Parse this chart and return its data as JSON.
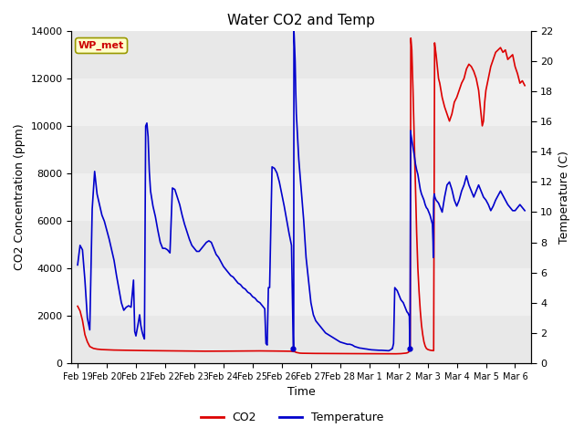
{
  "title": "Water CO2 and Temp",
  "xlabel": "Time",
  "ylabel_left": "CO2 Concentration (ppm)",
  "ylabel_right": "Temperature (C)",
  "legend_label": "WP_met",
  "legend_entries": [
    "CO2",
    "Temperature"
  ],
  "co2_color": "#dd0000",
  "temp_color": "#0000cc",
  "ylim_left": [
    0,
    14000
  ],
  "ylim_right": [
    0,
    22
  ],
  "yticks_left": [
    0,
    2000,
    4000,
    6000,
    8000,
    10000,
    12000,
    14000
  ],
  "yticks_right": [
    0,
    2,
    4,
    6,
    8,
    10,
    12,
    14,
    16,
    18,
    20,
    22
  ],
  "background_color": "#ffffff",
  "band_colors": [
    "#e8e8e8",
    "#f0f0f0"
  ],
  "annotation_box_color": "#ffffcc",
  "annotation_box_edgecolor": "#999900",
  "annotation_text_color": "#cc0000",
  "co2_data": [
    [
      0.0,
      2400
    ],
    [
      0.2,
      2200
    ],
    [
      0.4,
      1800
    ],
    [
      0.6,
      1200
    ],
    [
      0.8,
      900
    ],
    [
      1.0,
      700
    ],
    [
      1.3,
      620
    ],
    [
      1.6,
      590
    ],
    [
      2.0,
      570
    ],
    [
      2.5,
      560
    ],
    [
      3.0,
      550
    ],
    [
      3.5,
      545
    ],
    [
      4.0,
      540
    ],
    [
      4.5,
      535
    ],
    [
      5.0,
      530
    ],
    [
      5.5,
      528
    ],
    [
      6.0,
      525
    ],
    [
      6.5,
      522
    ],
    [
      7.0,
      518
    ],
    [
      7.5,
      515
    ],
    [
      8.0,
      512
    ],
    [
      8.5,
      510
    ],
    [
      9.0,
      508
    ],
    [
      9.5,
      505
    ],
    [
      10.0,
      503
    ],
    [
      10.5,
      502
    ],
    [
      11.0,
      502
    ],
    [
      11.5,
      503
    ],
    [
      12.0,
      504
    ],
    [
      12.5,
      506
    ],
    [
      13.0,
      508
    ],
    [
      13.5,
      510
    ],
    [
      14.0,
      512
    ],
    [
      14.5,
      514
    ],
    [
      15.0,
      515
    ],
    [
      15.5,
      513
    ],
    [
      16.0,
      510
    ],
    [
      16.5,
      507
    ],
    [
      17.0,
      504
    ],
    [
      17.5,
      500
    ],
    [
      17.9,
      480
    ],
    [
      17.95,
      460
    ],
    [
      18.0,
      450
    ],
    [
      18.1,
      440
    ],
    [
      18.2,
      430
    ],
    [
      18.3,
      420
    ],
    [
      18.5,
      415
    ],
    [
      19.0,
      410
    ],
    [
      19.5,
      408
    ],
    [
      20.0,
      406
    ],
    [
      20.5,
      404
    ],
    [
      21.0,
      403
    ],
    [
      21.5,
      402
    ],
    [
      22.0,
      401
    ],
    [
      22.5,
      400
    ],
    [
      23.0,
      400
    ],
    [
      23.5,
      400
    ],
    [
      24.0,
      398
    ],
    [
      24.5,
      396
    ],
    [
      25.0,
      394
    ],
    [
      25.5,
      393
    ],
    [
      26.0,
      392
    ],
    [
      26.2,
      393
    ],
    [
      26.4,
      395
    ],
    [
      26.6,
      400
    ],
    [
      26.8,
      410
    ],
    [
      27.0,
      420
    ],
    [
      27.1,
      430
    ],
    [
      27.2,
      450
    ],
    [
      27.3,
      500
    ],
    [
      27.35,
      550
    ],
    [
      27.37,
      600
    ],
    [
      27.4,
      9800
    ],
    [
      27.42,
      13700
    ],
    [
      27.5,
      13200
    ],
    [
      27.6,
      11500
    ],
    [
      27.7,
      9500
    ],
    [
      27.8,
      7500
    ],
    [
      27.9,
      5500
    ],
    [
      28.0,
      4000
    ],
    [
      28.1,
      3000
    ],
    [
      28.2,
      2200
    ],
    [
      28.3,
      1600
    ],
    [
      28.4,
      1200
    ],
    [
      28.5,
      900
    ],
    [
      28.6,
      720
    ],
    [
      28.7,
      620
    ],
    [
      28.8,
      580
    ],
    [
      28.9,
      560
    ],
    [
      29.0,
      545
    ],
    [
      29.05,
      540
    ],
    [
      29.1,
      535
    ],
    [
      29.2,
      530
    ],
    [
      29.3,
      525
    ],
    [
      29.35,
      9500
    ],
    [
      29.38,
      13500
    ],
    [
      29.4,
      13400
    ],
    [
      29.5,
      13000
    ],
    [
      29.6,
      12500
    ],
    [
      29.7,
      12000
    ],
    [
      29.8,
      11800
    ],
    [
      29.9,
      11500
    ],
    [
      30.0,
      11200
    ],
    [
      30.2,
      10800
    ],
    [
      30.4,
      10500
    ],
    [
      30.6,
      10200
    ],
    [
      30.8,
      10500
    ],
    [
      31.0,
      11000
    ],
    [
      31.2,
      11200
    ],
    [
      31.4,
      11500
    ],
    [
      31.6,
      11800
    ],
    [
      31.8,
      12000
    ],
    [
      32.0,
      12400
    ],
    [
      32.2,
      12600
    ],
    [
      32.4,
      12500
    ],
    [
      32.6,
      12300
    ],
    [
      32.8,
      12000
    ],
    [
      33.0,
      11500
    ],
    [
      33.2,
      10500
    ],
    [
      33.3,
      10000
    ],
    [
      33.4,
      10200
    ],
    [
      33.5,
      11000
    ],
    [
      33.6,
      11500
    ],
    [
      33.8,
      12000
    ],
    [
      34.0,
      12500
    ],
    [
      34.2,
      12800
    ],
    [
      34.4,
      13100
    ],
    [
      34.6,
      13200
    ],
    [
      34.8,
      13300
    ],
    [
      35.0,
      13100
    ],
    [
      35.2,
      13200
    ],
    [
      35.4,
      12800
    ],
    [
      35.6,
      12900
    ],
    [
      35.8,
      13000
    ],
    [
      36.0,
      12500
    ],
    [
      36.2,
      12200
    ],
    [
      36.4,
      11800
    ],
    [
      36.6,
      11900
    ],
    [
      36.8,
      11700
    ]
  ],
  "temp_data": [
    [
      0.0,
      6.5
    ],
    [
      0.2,
      7.8
    ],
    [
      0.4,
      7.5
    ],
    [
      0.6,
      5.5
    ],
    [
      0.8,
      3.0
    ],
    [
      1.0,
      2.2
    ],
    [
      1.2,
      10.2
    ],
    [
      1.4,
      12.7
    ],
    [
      1.6,
      11.2
    ],
    [
      1.8,
      10.5
    ],
    [
      2.0,
      9.8
    ],
    [
      2.2,
      9.4
    ],
    [
      2.4,
      8.8
    ],
    [
      2.6,
      8.2
    ],
    [
      2.8,
      7.5
    ],
    [
      3.0,
      6.8
    ],
    [
      3.2,
      5.8
    ],
    [
      3.4,
      4.9
    ],
    [
      3.6,
      4.0
    ],
    [
      3.8,
      3.5
    ],
    [
      4.0,
      3.7
    ],
    [
      4.2,
      3.8
    ],
    [
      4.4,
      3.7
    ],
    [
      4.6,
      5.5
    ],
    [
      4.7,
      2.1
    ],
    [
      4.8,
      1.8
    ],
    [
      5.0,
      2.7
    ],
    [
      5.1,
      3.2
    ],
    [
      5.2,
      2.5
    ],
    [
      5.3,
      2.1
    ],
    [
      5.4,
      1.8
    ],
    [
      5.5,
      1.6
    ],
    [
      5.6,
      15.7
    ],
    [
      5.7,
      15.9
    ],
    [
      5.8,
      15.0
    ],
    [
      5.9,
      12.7
    ],
    [
      6.0,
      11.4
    ],
    [
      6.2,
      10.4
    ],
    [
      6.4,
      9.7
    ],
    [
      6.6,
      8.8
    ],
    [
      6.8,
      8.0
    ],
    [
      7.0,
      7.6
    ],
    [
      7.2,
      7.6
    ],
    [
      7.4,
      7.5
    ],
    [
      7.5,
      7.4
    ],
    [
      7.6,
      7.3
    ],
    [
      7.8,
      11.6
    ],
    [
      8.0,
      11.5
    ],
    [
      8.2,
      11.0
    ],
    [
      8.4,
      10.5
    ],
    [
      8.6,
      9.8
    ],
    [
      8.8,
      9.2
    ],
    [
      9.0,
      8.7
    ],
    [
      9.2,
      8.2
    ],
    [
      9.4,
      7.8
    ],
    [
      9.6,
      7.6
    ],
    [
      9.8,
      7.4
    ],
    [
      10.0,
      7.4
    ],
    [
      10.2,
      7.6
    ],
    [
      10.4,
      7.8
    ],
    [
      10.6,
      8.0
    ],
    [
      10.8,
      8.1
    ],
    [
      11.0,
      8.0
    ],
    [
      11.2,
      7.6
    ],
    [
      11.4,
      7.2
    ],
    [
      11.6,
      7.0
    ],
    [
      11.8,
      6.7
    ],
    [
      12.0,
      6.4
    ],
    [
      12.2,
      6.2
    ],
    [
      12.4,
      6.0
    ],
    [
      12.6,
      5.8
    ],
    [
      12.8,
      5.7
    ],
    [
      13.0,
      5.5
    ],
    [
      13.2,
      5.3
    ],
    [
      13.4,
      5.2
    ],
    [
      13.6,
      5.0
    ],
    [
      13.8,
      4.9
    ],
    [
      14.0,
      4.7
    ],
    [
      14.2,
      4.6
    ],
    [
      14.4,
      4.4
    ],
    [
      14.6,
      4.3
    ],
    [
      14.8,
      4.1
    ],
    [
      15.0,
      4.0
    ],
    [
      15.2,
      3.8
    ],
    [
      15.4,
      3.6
    ],
    [
      15.5,
      1.3
    ],
    [
      15.6,
      1.2
    ],
    [
      15.7,
      5.0
    ],
    [
      15.8,
      5.0
    ],
    [
      16.0,
      13.0
    ],
    [
      16.2,
      12.9
    ],
    [
      16.4,
      12.6
    ],
    [
      16.6,
      12.0
    ],
    [
      16.8,
      11.2
    ],
    [
      17.0,
      10.4
    ],
    [
      17.2,
      9.5
    ],
    [
      17.4,
      8.6
    ],
    [
      17.6,
      7.8
    ],
    [
      17.75,
      0.95
    ],
    [
      17.78,
      0.9
    ],
    [
      17.8,
      22.0
    ],
    [
      17.82,
      21.7
    ],
    [
      17.85,
      21.0
    ],
    [
      17.9,
      20.0
    ],
    [
      17.95,
      18.0
    ],
    [
      18.0,
      16.5
    ],
    [
      18.2,
      13.5
    ],
    [
      18.4,
      11.5
    ],
    [
      18.6,
      9.5
    ],
    [
      18.8,
      7.0
    ],
    [
      19.0,
      5.5
    ],
    [
      19.2,
      4.0
    ],
    [
      19.4,
      3.2
    ],
    [
      19.6,
      2.8
    ],
    [
      19.8,
      2.6
    ],
    [
      20.0,
      2.4
    ],
    [
      20.2,
      2.2
    ],
    [
      20.4,
      2.0
    ],
    [
      20.6,
      1.9
    ],
    [
      20.8,
      1.8
    ],
    [
      21.0,
      1.7
    ],
    [
      21.2,
      1.6
    ],
    [
      21.4,
      1.5
    ],
    [
      21.6,
      1.4
    ],
    [
      21.8,
      1.35
    ],
    [
      22.0,
      1.3
    ],
    [
      22.2,
      1.25
    ],
    [
      22.4,
      1.25
    ],
    [
      22.6,
      1.2
    ],
    [
      22.8,
      1.1
    ],
    [
      23.0,
      1.05
    ],
    [
      23.2,
      1.0
    ],
    [
      23.4,
      0.98
    ],
    [
      23.6,
      0.95
    ],
    [
      23.8,
      0.93
    ],
    [
      24.0,
      0.9
    ],
    [
      24.2,
      0.88
    ],
    [
      24.4,
      0.87
    ],
    [
      24.6,
      0.86
    ],
    [
      24.8,
      0.85
    ],
    [
      25.0,
      0.85
    ],
    [
      25.2,
      0.84
    ],
    [
      25.4,
      0.83
    ],
    [
      25.6,
      0.82
    ],
    [
      25.8,
      0.9
    ],
    [
      25.85,
      0.95
    ],
    [
      25.9,
      0.95
    ],
    [
      26.0,
      1.3
    ],
    [
      26.1,
      5.0
    ],
    [
      26.2,
      4.9
    ],
    [
      26.3,
      4.8
    ],
    [
      26.4,
      4.6
    ],
    [
      26.5,
      4.4
    ],
    [
      26.6,
      4.2
    ],
    [
      26.7,
      4.1
    ],
    [
      26.8,
      4.0
    ],
    [
      26.9,
      3.8
    ],
    [
      27.0,
      3.6
    ],
    [
      27.1,
      3.4
    ],
    [
      27.2,
      3.3
    ],
    [
      27.3,
      3.1
    ],
    [
      27.34,
      0.95
    ],
    [
      27.36,
      0.9
    ],
    [
      27.4,
      15.4
    ],
    [
      27.42,
      15.2
    ],
    [
      27.5,
      14.8
    ],
    [
      27.6,
      14.3
    ],
    [
      27.7,
      13.8
    ],
    [
      27.8,
      13.2
    ],
    [
      27.9,
      12.8
    ],
    [
      28.0,
      12.5
    ],
    [
      28.1,
      12.0
    ],
    [
      28.2,
      11.5
    ],
    [
      28.3,
      11.2
    ],
    [
      28.4,
      11.0
    ],
    [
      28.5,
      10.8
    ],
    [
      28.6,
      10.5
    ],
    [
      28.7,
      10.3
    ],
    [
      28.8,
      10.2
    ],
    [
      28.9,
      10.0
    ],
    [
      29.0,
      9.8
    ],
    [
      29.1,
      9.5
    ],
    [
      29.2,
      9.2
    ],
    [
      29.25,
      8.0
    ],
    [
      29.27,
      7.0
    ],
    [
      29.3,
      10.8
    ],
    [
      29.35,
      11.2
    ],
    [
      29.4,
      11.0
    ],
    [
      29.5,
      10.8
    ],
    [
      29.6,
      10.7
    ],
    [
      29.7,
      10.6
    ],
    [
      29.8,
      10.4
    ],
    [
      29.9,
      10.2
    ],
    [
      30.0,
      10.0
    ],
    [
      30.2,
      11.0
    ],
    [
      30.4,
      11.8
    ],
    [
      30.6,
      12.0
    ],
    [
      30.8,
      11.5
    ],
    [
      31.0,
      10.8
    ],
    [
      31.2,
      10.4
    ],
    [
      31.4,
      10.8
    ],
    [
      31.6,
      11.4
    ],
    [
      31.8,
      11.8
    ],
    [
      32.0,
      12.4
    ],
    [
      32.2,
      11.8
    ],
    [
      32.4,
      11.4
    ],
    [
      32.6,
      11.0
    ],
    [
      32.8,
      11.4
    ],
    [
      33.0,
      11.8
    ],
    [
      33.2,
      11.4
    ],
    [
      33.4,
      11.0
    ],
    [
      33.6,
      10.8
    ],
    [
      33.8,
      10.5
    ],
    [
      34.0,
      10.1
    ],
    [
      34.2,
      10.4
    ],
    [
      34.4,
      10.8
    ],
    [
      34.6,
      11.1
    ],
    [
      34.8,
      11.4
    ],
    [
      35.0,
      11.1
    ],
    [
      35.2,
      10.8
    ],
    [
      35.4,
      10.5
    ],
    [
      35.6,
      10.3
    ],
    [
      35.8,
      10.1
    ],
    [
      36.0,
      10.1
    ],
    [
      36.2,
      10.3
    ],
    [
      36.4,
      10.5
    ],
    [
      36.6,
      10.3
    ],
    [
      36.8,
      10.1
    ]
  ],
  "xlim": [
    -0.5,
    37.3
  ],
  "x_tick_labels": [
    "Feb 19",
    "Feb 20",
    "Feb 21",
    "Feb 22",
    "Feb 23",
    "Feb 24",
    "Feb 25",
    "Feb 26",
    "Feb 27",
    "Feb 28",
    "Mar 1",
    "Mar 2",
    "Mar 3",
    "Mar 4",
    "Mar 5",
    "Mar 6"
  ],
  "x_tick_positions": [
    0,
    2.4,
    4.8,
    7.2,
    9.6,
    12.0,
    14.4,
    16.8,
    19.2,
    21.6,
    24.0,
    26.4,
    28.8,
    31.2,
    33.6,
    36.0
  ]
}
